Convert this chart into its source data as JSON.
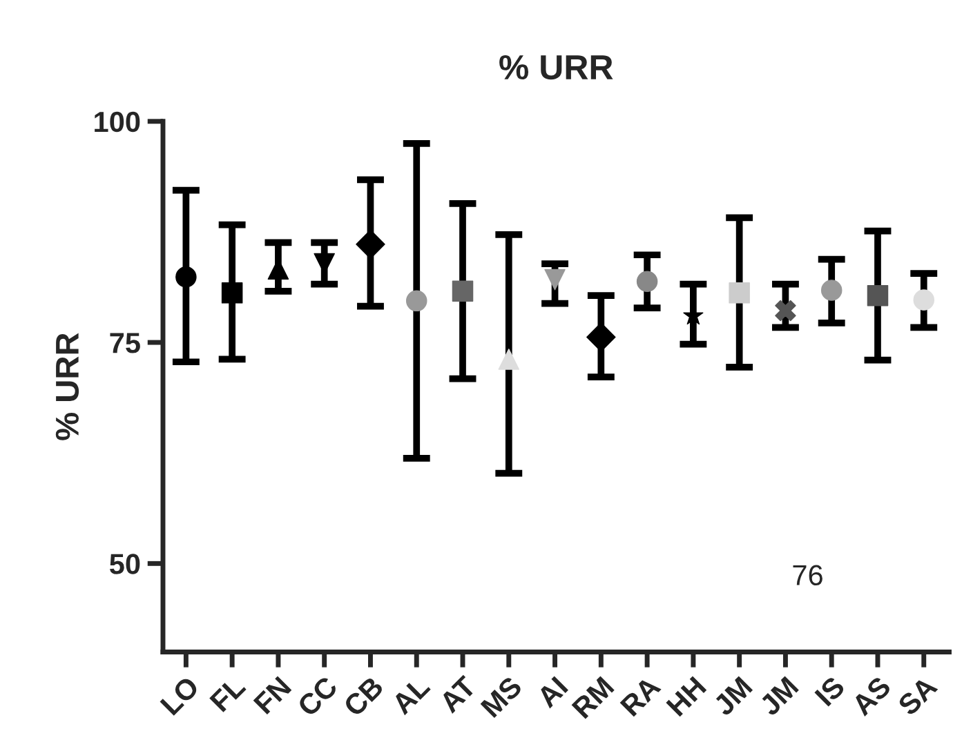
{
  "chart_data": {
    "type": "scatter",
    "title": "% URR",
    "ylabel": "% URR",
    "categories": [
      "LO",
      "FL",
      "FN",
      "CC",
      "CB",
      "AL",
      "AT",
      "MS",
      "AI",
      "RM",
      "RA",
      "HH",
      "JM",
      "JM",
      "IS",
      "AS",
      "SA"
    ],
    "ylim": [
      40,
      100
    ],
    "yticks": [
      50,
      75,
      100
    ],
    "grid": false,
    "legend": false,
    "annotations": [
      "76"
    ],
    "series": [
      {
        "color": "#000000",
        "marker": "circle",
        "values": [
          82.4,
          null,
          null,
          null,
          null,
          null,
          null,
          null,
          null,
          null,
          null,
          null,
          null,
          null,
          null,
          null,
          null
        ],
        "errors": [
          [
            72.8,
            92.2
          ],
          null,
          null,
          null,
          null,
          null,
          null,
          null,
          null,
          null,
          null,
          null,
          null,
          null,
          null,
          null,
          null
        ]
      },
      {
        "color": "#000000",
        "marker": "square",
        "values": [
          null,
          80.6,
          null,
          null,
          null,
          null,
          null,
          null,
          null,
          null,
          null,
          null,
          null,
          null,
          null,
          null,
          null
        ],
        "errors": [
          null,
          [
            73.1,
            88.3
          ],
          null,
          null,
          null,
          null,
          null,
          null,
          null,
          null,
          null,
          null,
          null,
          null,
          null,
          null,
          null
        ]
      },
      {
        "color": "#000000",
        "marker": "triangle",
        "values": [
          null,
          null,
          83.3,
          null,
          null,
          null,
          null,
          null,
          null,
          null,
          null,
          null,
          null,
          null,
          null,
          null,
          null
        ],
        "errors": [
          null,
          null,
          [
            80.8,
            86.3
          ],
          null,
          null,
          null,
          null,
          null,
          null,
          null,
          null,
          null,
          null,
          null,
          null,
          null,
          null
        ]
      },
      {
        "color": "#000000",
        "marker": "triangle_down",
        "values": [
          null,
          null,
          null,
          83.9,
          null,
          null,
          null,
          null,
          null,
          null,
          null,
          null,
          null,
          null,
          null,
          null,
          null
        ],
        "errors": [
          null,
          null,
          null,
          [
            81.6,
            86.3
          ],
          null,
          null,
          null,
          null,
          null,
          null,
          null,
          null,
          null,
          null,
          null,
          null,
          null
        ]
      },
      {
        "color": "#000000",
        "marker": "diamond",
        "values": [
          null,
          null,
          null,
          null,
          86.1,
          null,
          null,
          null,
          null,
          null,
          null,
          null,
          null,
          null,
          null,
          null,
          null
        ],
        "errors": [
          null,
          null,
          null,
          null,
          [
            79.1,
            93.4
          ],
          null,
          null,
          null,
          null,
          null,
          null,
          null,
          null,
          null,
          null,
          null,
          null
        ]
      },
      {
        "color": "#999999",
        "marker": "circle",
        "values": [
          null,
          null,
          null,
          null,
          null,
          79.7,
          null,
          null,
          null,
          null,
          null,
          null,
          null,
          null,
          null,
          null,
          null
        ],
        "errors": [
          null,
          null,
          null,
          null,
          null,
          [
            61.9,
            97.5
          ],
          null,
          null,
          null,
          null,
          null,
          null,
          null,
          null,
          null,
          null,
          null
        ]
      },
      {
        "color": "#666666",
        "marker": "square",
        "values": [
          null,
          null,
          null,
          null,
          null,
          null,
          80.8,
          null,
          null,
          null,
          null,
          null,
          null,
          null,
          null,
          null,
          null
        ],
        "errors": [
          null,
          null,
          null,
          null,
          null,
          null,
          [
            70.9,
            90.7
          ],
          null,
          null,
          null,
          null,
          null,
          null,
          null,
          null,
          null,
          null
        ]
      },
      {
        "color": "#dddddd",
        "marker": "triangle",
        "values": [
          null,
          null,
          null,
          null,
          null,
          null,
          null,
          73.1,
          null,
          null,
          null,
          null,
          null,
          null,
          null,
          null,
          null
        ],
        "errors": [
          null,
          null,
          null,
          null,
          null,
          null,
          null,
          [
            60.2,
            87.2
          ],
          null,
          null,
          null,
          null,
          null,
          null,
          null,
          null,
          null
        ]
      },
      {
        "color": "#999999",
        "marker": "triangle_down",
        "values": [
          null,
          null,
          null,
          null,
          null,
          null,
          null,
          null,
          82.1,
          null,
          null,
          null,
          null,
          null,
          null,
          null,
          null
        ],
        "errors": [
          null,
          null,
          null,
          null,
          null,
          null,
          null,
          null,
          [
            79.4,
            83.9
          ],
          null,
          null,
          null,
          null,
          null,
          null,
          null,
          null
        ]
      },
      {
        "color": "#000000",
        "marker": "diamond",
        "values": [
          null,
          null,
          null,
          null,
          null,
          null,
          null,
          null,
          null,
          75.6,
          null,
          null,
          null,
          null,
          null,
          null,
          null
        ],
        "errors": [
          null,
          null,
          null,
          null,
          null,
          null,
          null,
          null,
          null,
          [
            71.1,
            80.3
          ],
          null,
          null,
          null,
          null,
          null,
          null,
          null
        ]
      },
      {
        "color": "#888888",
        "marker": "circle",
        "values": [
          null,
          null,
          null,
          null,
          null,
          null,
          null,
          null,
          null,
          null,
          81.9,
          null,
          null,
          null,
          null,
          null,
          null
        ],
        "errors": [
          null,
          null,
          null,
          null,
          null,
          null,
          null,
          null,
          null,
          null,
          [
            78.9,
            84.9
          ],
          null,
          null,
          null,
          null,
          null,
          null
        ]
      },
      {
        "color": "#000000",
        "marker": "star",
        "values": [
          null,
          null,
          null,
          null,
          null,
          null,
          null,
          null,
          null,
          null,
          null,
          78.0,
          null,
          null,
          null,
          null,
          null
        ],
        "errors": [
          null,
          null,
          null,
          null,
          null,
          null,
          null,
          null,
          null,
          null,
          null,
          [
            74.8,
            81.6
          ],
          null,
          null,
          null,
          null,
          null
        ]
      },
      {
        "color": "#cccccc",
        "marker": "square",
        "values": [
          null,
          null,
          null,
          null,
          null,
          null,
          null,
          null,
          null,
          null,
          null,
          null,
          80.6,
          null,
          null,
          null,
          null
        ],
        "errors": [
          null,
          null,
          null,
          null,
          null,
          null,
          null,
          null,
          null,
          null,
          null,
          null,
          [
            72.2,
            89.1
          ],
          null,
          null,
          null,
          null
        ]
      },
      {
        "color": "#555555",
        "marker": "cross",
        "values": [
          null,
          null,
          null,
          null,
          null,
          null,
          null,
          null,
          null,
          null,
          null,
          null,
          null,
          78.6,
          null,
          null,
          null
        ],
        "errors": [
          null,
          null,
          null,
          null,
          null,
          null,
          null,
          null,
          null,
          null,
          null,
          null,
          null,
          [
            76.7,
            81.6
          ],
          null,
          null,
          null
        ]
      },
      {
        "color": "#999999",
        "marker": "circle",
        "values": [
          null,
          null,
          null,
          null,
          null,
          null,
          null,
          null,
          null,
          null,
          null,
          null,
          null,
          null,
          80.9,
          null,
          null
        ],
        "errors": [
          null,
          null,
          null,
          null,
          null,
          null,
          null,
          null,
          null,
          null,
          null,
          null,
          null,
          null,
          [
            77.2,
            84.4
          ],
          null,
          null
        ]
      },
      {
        "color": "#555555",
        "marker": "square",
        "values": [
          null,
          null,
          null,
          null,
          null,
          null,
          null,
          null,
          null,
          null,
          null,
          null,
          null,
          null,
          null,
          80.3,
          null
        ],
        "errors": [
          null,
          null,
          null,
          null,
          null,
          null,
          null,
          null,
          null,
          null,
          null,
          null,
          null,
          null,
          null,
          [
            73.0,
            87.6
          ],
          null
        ]
      },
      {
        "color": "#dddddd",
        "marker": "circle",
        "values": [
          null,
          null,
          null,
          null,
          null,
          null,
          null,
          null,
          null,
          null,
          null,
          null,
          null,
          null,
          null,
          null,
          79.8
        ],
        "errors": [
          null,
          null,
          null,
          null,
          null,
          null,
          null,
          null,
          null,
          null,
          null,
          null,
          null,
          null,
          null,
          null,
          [
            76.7,
            82.8
          ]
        ]
      }
    ]
  }
}
